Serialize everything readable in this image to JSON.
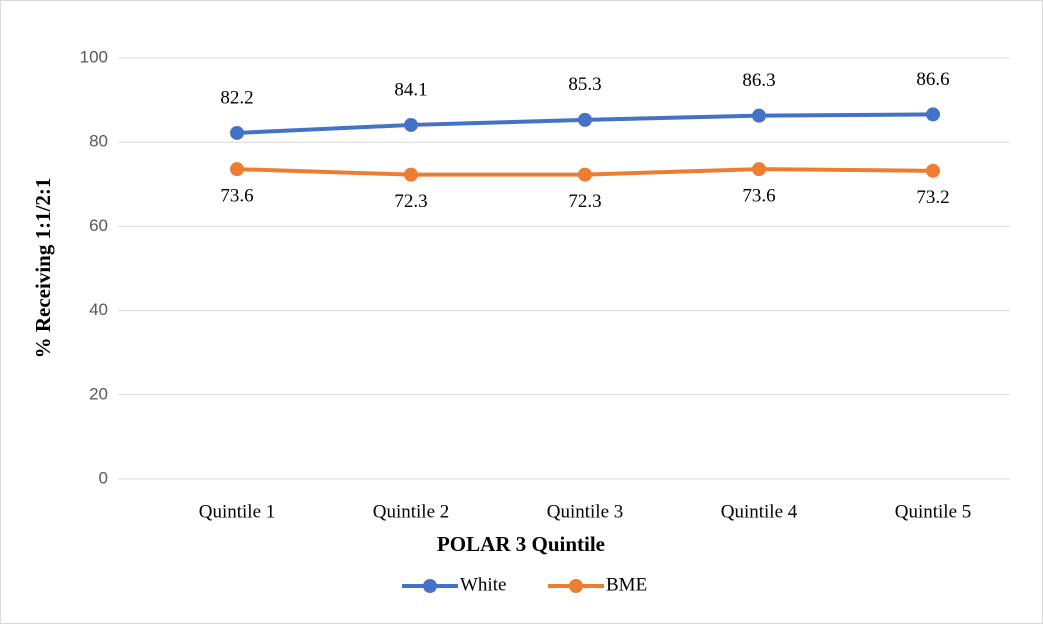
{
  "chart_data": {
    "type": "line",
    "x_label": "POLAR 3 Quintile",
    "y_label": "% Receiving 1:1/2:1",
    "categories": [
      "Quintile 1",
      "Quintile 2",
      "Quintile 3",
      "Quintile 4",
      "Quintile 5"
    ],
    "series": [
      {
        "name": "White",
        "color": "#4472c4",
        "values": [
          82.2,
          84.1,
          85.3,
          86.3,
          86.6
        ]
      },
      {
        "name": "BME",
        "color": "#ed7d31",
        "values": [
          73.6,
          72.3,
          72.3,
          73.6,
          73.2
        ]
      }
    ],
    "ylim": [
      0,
      100
    ],
    "yticks": [
      0,
      20,
      40,
      60,
      80,
      100
    ],
    "grid": true,
    "legend": "bottom"
  }
}
